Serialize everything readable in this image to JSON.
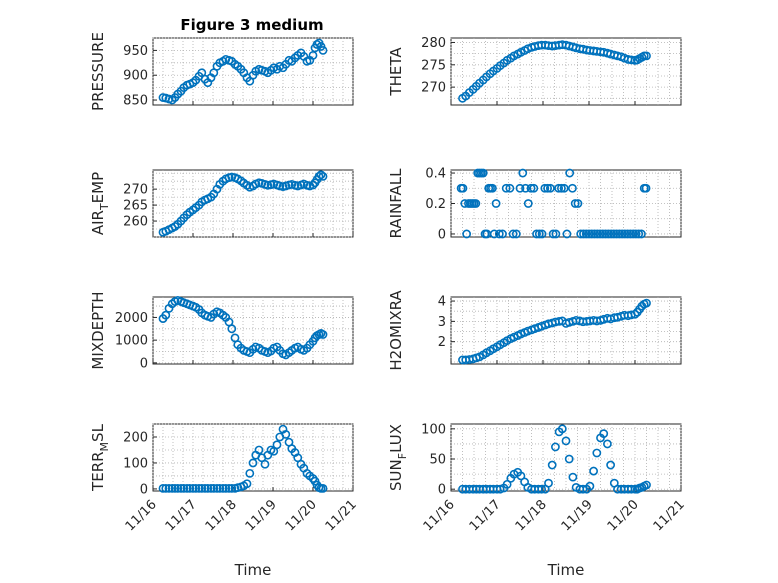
{
  "figure_title": "Figure 3 medium",
  "chart_data": [
    {
      "type": "scatter",
      "id": "pressure",
      "ylabel": "PRESSURE",
      "xlabel": "",
      "xlim": [
        0,
        5
      ],
      "ylim": [
        840,
        975
      ],
      "yticks": [
        850,
        900,
        950
      ],
      "ytick_labels": [
        "850",
        "900",
        "950"
      ],
      "x": [
        0.25,
        0.32,
        0.4,
        0.48,
        0.55,
        0.62,
        0.7,
        0.77,
        0.85,
        0.92,
        1.0,
        1.07,
        1.15,
        1.22,
        1.3,
        1.37,
        1.45,
        1.52,
        1.6,
        1.67,
        1.75,
        1.82,
        1.9,
        1.97,
        2.05,
        2.12,
        2.2,
        2.27,
        2.35,
        2.42,
        2.5,
        2.57,
        2.65,
        2.72,
        2.8,
        2.87,
        2.95,
        3.02,
        3.1,
        3.17,
        3.25,
        3.32,
        3.4,
        3.47,
        3.55,
        3.62,
        3.7,
        3.77,
        3.85,
        3.92,
        4.0,
        4.05,
        4.1,
        4.15,
        4.2,
        4.25
      ],
      "y": [
        855,
        854,
        852,
        850,
        855,
        862,
        868,
        875,
        880,
        882,
        885,
        890,
        898,
        905,
        892,
        885,
        895,
        905,
        918,
        925,
        928,
        932,
        930,
        928,
        922,
        918,
        912,
        905,
        895,
        888,
        900,
        908,
        912,
        910,
        908,
        905,
        910,
        915,
        912,
        918,
        915,
        922,
        930,
        928,
        935,
        940,
        945,
        938,
        928,
        930,
        940,
        955,
        962,
        965,
        958,
        950
      ]
    },
    {
      "type": "scatter",
      "id": "theta",
      "ylabel": "THETA",
      "xlabel": "",
      "xlim": [
        0,
        5
      ],
      "ylim": [
        266,
        281
      ],
      "yticks": [
        270,
        275,
        280
      ],
      "ytick_labels": [
        "270",
        "275",
        "280"
      ],
      "x": [
        0.25,
        0.32,
        0.4,
        0.48,
        0.55,
        0.62,
        0.7,
        0.77,
        0.85,
        0.92,
        1.0,
        1.07,
        1.15,
        1.22,
        1.3,
        1.37,
        1.45,
        1.52,
        1.6,
        1.67,
        1.75,
        1.82,
        1.9,
        1.97,
        2.05,
        2.12,
        2.2,
        2.27,
        2.35,
        2.42,
        2.5,
        2.57,
        2.65,
        2.72,
        2.8,
        2.87,
        2.95,
        3.02,
        3.1,
        3.17,
        3.25,
        3.32,
        3.4,
        3.47,
        3.55,
        3.62,
        3.7,
        3.77,
        3.85,
        3.92,
        4.0,
        4.05,
        4.1,
        4.15,
        4.2,
        4.25
      ],
      "y": [
        267.5,
        268,
        268.8,
        269.5,
        270.2,
        270.9,
        271.6,
        272.3,
        273,
        273.6,
        274.2,
        274.8,
        275.4,
        276,
        276.5,
        277,
        277.4,
        277.8,
        278.2,
        278.6,
        278.9,
        279.1,
        279.3,
        279.4,
        279.4,
        279.3,
        279.2,
        279.3,
        279.4,
        279.5,
        279.4,
        279.2,
        279,
        278.8,
        278.6,
        278.5,
        278.3,
        278.2,
        278.1,
        278,
        277.9,
        277.8,
        277.6,
        277.4,
        277.2,
        277,
        276.8,
        276.5,
        276.2,
        276.1,
        276,
        276.1,
        276.4,
        276.7,
        277,
        277
      ]
    },
    {
      "type": "scatter",
      "id": "air-temp",
      "ylabel": "AIR_TEMP",
      "ylabel_parts": [
        "AIR",
        "T",
        "EMP"
      ],
      "xlabel": "",
      "xlim": [
        0,
        5
      ],
      "ylim": [
        255,
        276
      ],
      "yticks": [
        260,
        265,
        270
      ],
      "ytick_labels": [
        "260",
        "265",
        "270"
      ],
      "x": [
        0.25,
        0.32,
        0.4,
        0.48,
        0.55,
        0.62,
        0.7,
        0.77,
        0.85,
        0.92,
        1.0,
        1.07,
        1.15,
        1.22,
        1.3,
        1.37,
        1.45,
        1.52,
        1.6,
        1.67,
        1.75,
        1.82,
        1.9,
        1.97,
        2.05,
        2.12,
        2.2,
        2.27,
        2.35,
        2.42,
        2.5,
        2.57,
        2.65,
        2.72,
        2.8,
        2.87,
        2.95,
        3.02,
        3.1,
        3.17,
        3.25,
        3.32,
        3.4,
        3.47,
        3.55,
        3.62,
        3.7,
        3.77,
        3.85,
        3.92,
        4.0,
        4.05,
        4.1,
        4.15,
        4.2,
        4.25
      ],
      "y": [
        256.5,
        256.8,
        257.3,
        257.8,
        258.3,
        259,
        260,
        261,
        262,
        262.8,
        263.5,
        264.2,
        265,
        266,
        266.6,
        267,
        267.5,
        268.5,
        270,
        271.5,
        272.5,
        273.2,
        273.6,
        273.8,
        273.6,
        273.2,
        272.6,
        271.9,
        271.2,
        270.6,
        271,
        271.6,
        272,
        271.8,
        271.5,
        271.2,
        271.4,
        271.6,
        271.3,
        271,
        270.8,
        271,
        271.3,
        271.5,
        271.2,
        271,
        271.3,
        271.6,
        271.2,
        271,
        271.3,
        272,
        273,
        274,
        274.5,
        274
      ]
    },
    {
      "type": "scatter",
      "id": "rainfall",
      "ylabel": "RAINFALL",
      "xlabel": "",
      "xlim": [
        0,
        5
      ],
      "ylim": [
        -0.02,
        0.42
      ],
      "yticks": [
        0,
        0.2,
        0.4
      ],
      "ytick_labels": [
        "0",
        "0.2",
        "0.4"
      ],
      "x": [
        0.22,
        0.26,
        0.3,
        0.34,
        0.38,
        0.42,
        0.46,
        0.5,
        0.54,
        0.58,
        0.62,
        0.66,
        0.7,
        0.74,
        0.78,
        0.82,
        0.86,
        0.9,
        0.94,
        0.98,
        1.05,
        1.12,
        1.2,
        1.28,
        1.35,
        1.42,
        1.5,
        1.56,
        1.62,
        1.68,
        1.74,
        1.8,
        1.86,
        1.92,
        1.98,
        2.04,
        2.1,
        2.16,
        2.22,
        2.28,
        2.34,
        2.4,
        2.46,
        2.52,
        2.58,
        2.64,
        2.7,
        2.76,
        2.82,
        2.88,
        2.94,
        3.0,
        3.06,
        3.12,
        3.18,
        3.24,
        3.3,
        3.36,
        3.42,
        3.48,
        3.54,
        3.6,
        3.66,
        3.72,
        3.78,
        3.84,
        3.9,
        3.96,
        4.02,
        4.08,
        4.14,
        4.2,
        4.24
      ],
      "y": [
        0.3,
        0.3,
        0.2,
        0.0,
        0.2,
        0.2,
        0.2,
        0.2,
        0.2,
        0.4,
        0.4,
        0.4,
        0.4,
        0.0,
        0.0,
        0.3,
        0.3,
        0.3,
        0.0,
        0.2,
        0.0,
        0.0,
        0.3,
        0.3,
        0.0,
        0.0,
        0.3,
        0.4,
        0.3,
        0.2,
        0.3,
        0.3,
        0.0,
        0.0,
        0.0,
        0.3,
        0.3,
        0.3,
        0.0,
        0.0,
        0.3,
        0.3,
        0.3,
        0.0,
        0.4,
        0.3,
        0.2,
        0.2,
        0.0,
        0.0,
        0.0,
        0.0,
        0.0,
        0.0,
        0.0,
        0.0,
        0.0,
        0.0,
        0.0,
        0.0,
        0.0,
        0.0,
        0.0,
        0.0,
        0.0,
        0.0,
        0.0,
        0.0,
        0.0,
        0.0,
        0.0,
        0.3,
        0.3
      ]
    },
    {
      "type": "scatter",
      "id": "mixdepth",
      "ylabel": "MIXDEPTH",
      "xlabel": "",
      "xlim": [
        0,
        5
      ],
      "ylim": [
        -50,
        2900
      ],
      "yticks": [
        0,
        1000,
        2000
      ],
      "ytick_labels": [
        "0",
        "1000",
        "2000"
      ],
      "x": [
        0.25,
        0.32,
        0.4,
        0.48,
        0.55,
        0.62,
        0.7,
        0.77,
        0.85,
        0.92,
        1.0,
        1.07,
        1.15,
        1.22,
        1.3,
        1.37,
        1.45,
        1.52,
        1.6,
        1.67,
        1.75,
        1.82,
        1.9,
        1.97,
        2.05,
        2.12,
        2.2,
        2.27,
        2.35,
        2.42,
        2.5,
        2.57,
        2.65,
        2.72,
        2.8,
        2.87,
        2.95,
        3.02,
        3.1,
        3.17,
        3.25,
        3.32,
        3.4,
        3.47,
        3.55,
        3.62,
        3.7,
        3.77,
        3.85,
        3.92,
        4.0,
        4.05,
        4.1,
        4.15,
        4.2,
        4.25
      ],
      "y": [
        1950,
        2100,
        2400,
        2600,
        2700,
        2750,
        2700,
        2650,
        2600,
        2550,
        2500,
        2450,
        2350,
        2200,
        2100,
        2050,
        2000,
        2150,
        2250,
        2200,
        2100,
        2000,
        1800,
        1500,
        1100,
        800,
        650,
        550,
        500,
        450,
        600,
        700,
        650,
        550,
        500,
        450,
        520,
        650,
        700,
        550,
        400,
        350,
        450,
        550,
        650,
        700,
        600,
        550,
        650,
        800,
        950,
        1100,
        1200,
        1250,
        1300,
        1250
      ]
    },
    {
      "type": "scatter",
      "id": "h2omixra",
      "ylabel": "H2OMIXRA",
      "xlabel": "",
      "xlim": [
        0,
        5
      ],
      "ylim": [
        0.9,
        4.2
      ],
      "yticks": [
        2,
        3,
        4
      ],
      "ytick_labels": [
        "2",
        "3",
        "4"
      ],
      "x": [
        0.25,
        0.32,
        0.4,
        0.48,
        0.55,
        0.62,
        0.7,
        0.77,
        0.85,
        0.92,
        1.0,
        1.07,
        1.15,
        1.22,
        1.3,
        1.37,
        1.45,
        1.52,
        1.6,
        1.67,
        1.75,
        1.82,
        1.9,
        1.97,
        2.05,
        2.12,
        2.2,
        2.27,
        2.35,
        2.42,
        2.5,
        2.57,
        2.65,
        2.72,
        2.8,
        2.87,
        2.95,
        3.02,
        3.1,
        3.17,
        3.25,
        3.32,
        3.4,
        3.47,
        3.55,
        3.62,
        3.7,
        3.77,
        3.85,
        3.92,
        4.0,
        4.05,
        4.1,
        4.15,
        4.2,
        4.25
      ],
      "y": [
        1.1,
        1.1,
        1.12,
        1.15,
        1.2,
        1.25,
        1.35,
        1.45,
        1.55,
        1.65,
        1.75,
        1.85,
        1.95,
        2.05,
        2.15,
        2.22,
        2.3,
        2.38,
        2.45,
        2.52,
        2.58,
        2.64,
        2.7,
        2.76,
        2.82,
        2.88,
        2.92,
        2.97,
        3.0,
        3.02,
        2.9,
        2.95,
        3.0,
        3.05,
        3.02,
        2.98,
        3.0,
        3.02,
        3.05,
        3.02,
        3.05,
        3.1,
        3.15,
        3.12,
        3.18,
        3.2,
        3.25,
        3.3,
        3.28,
        3.32,
        3.35,
        3.45,
        3.6,
        3.75,
        3.85,
        3.9
      ]
    },
    {
      "type": "scatter",
      "id": "terr-msl",
      "ylabel": "TERR_MSL",
      "ylabel_parts": [
        "TERR",
        "M",
        "SL"
      ],
      "xlabel": "Time",
      "xlim": [
        0,
        5
      ],
      "ylim": [
        -8,
        250
      ],
      "yticks": [
        0,
        100,
        200
      ],
      "ytick_labels": [
        "0",
        "100",
        "200"
      ],
      "xticks": [
        0,
        1,
        2,
        3,
        4,
        5
      ],
      "xtick_labels": [
        "11/16",
        "11/17",
        "11/18",
        "11/19",
        "11/20",
        "11/21"
      ],
      "x": [
        0.25,
        0.32,
        0.4,
        0.48,
        0.55,
        0.62,
        0.7,
        0.77,
        0.85,
        0.92,
        1.0,
        1.07,
        1.15,
        1.22,
        1.3,
        1.37,
        1.45,
        1.52,
        1.6,
        1.67,
        1.75,
        1.82,
        1.9,
        1.97,
        2.05,
        2.12,
        2.2,
        2.27,
        2.35,
        2.42,
        2.5,
        2.57,
        2.65,
        2.72,
        2.8,
        2.87,
        2.95,
        3.02,
        3.1,
        3.17,
        3.25,
        3.32,
        3.4,
        3.47,
        3.55,
        3.62,
        3.7,
        3.77,
        3.85,
        3.92,
        4.0,
        4.05,
        4.1,
        4.15,
        4.2,
        4.25
      ],
      "y": [
        2,
        2,
        2,
        2,
        2,
        2,
        2,
        2,
        2,
        2,
        2,
        2,
        2,
        2,
        2,
        2,
        2,
        2,
        2,
        2,
        2,
        2,
        2,
        2,
        2,
        5,
        8,
        12,
        20,
        60,
        100,
        130,
        150,
        120,
        95,
        130,
        150,
        145,
        170,
        200,
        230,
        210,
        180,
        155,
        140,
        120,
        95,
        80,
        60,
        50,
        40,
        30,
        15,
        5,
        2,
        2
      ]
    },
    {
      "type": "scatter",
      "id": "sun-flux",
      "ylabel": "SUN_FLUX",
      "ylabel_parts": [
        "SUN",
        "F",
        "LUX"
      ],
      "xlabel": "Time",
      "xlim": [
        0,
        5
      ],
      "ylim": [
        -3,
        108
      ],
      "yticks": [
        0,
        50,
        100
      ],
      "ytick_labels": [
        "0",
        "50",
        "100"
      ],
      "xticks": [
        0,
        1,
        2,
        3,
        4,
        5
      ],
      "xtick_labels": [
        "11/16",
        "11/17",
        "11/18",
        "11/19",
        "11/20",
        "11/21"
      ],
      "x": [
        0.25,
        0.32,
        0.4,
        0.48,
        0.55,
        0.62,
        0.7,
        0.77,
        0.85,
        0.92,
        1.0,
        1.07,
        1.15,
        1.22,
        1.3,
        1.37,
        1.45,
        1.52,
        1.6,
        1.67,
        1.75,
        1.82,
        1.9,
        1.97,
        2.05,
        2.12,
        2.2,
        2.27,
        2.35,
        2.42,
        2.5,
        2.57,
        2.65,
        2.72,
        2.8,
        2.87,
        2.95,
        3.02,
        3.1,
        3.17,
        3.25,
        3.32,
        3.4,
        3.47,
        3.55,
        3.62,
        3.7,
        3.77,
        3.85,
        3.92,
        4.0,
        4.05,
        4.1,
        4.15,
        4.2,
        4.25
      ],
      "y": [
        0,
        0,
        0,
        0,
        0,
        0,
        0,
        0,
        0,
        0,
        0,
        0,
        2,
        8,
        18,
        25,
        28,
        22,
        12,
        3,
        0,
        0,
        0,
        0,
        0,
        10,
        40,
        70,
        95,
        100,
        80,
        50,
        20,
        3,
        0,
        0,
        0,
        5,
        30,
        60,
        85,
        92,
        75,
        40,
        10,
        0,
        0,
        0,
        0,
        0,
        0,
        0,
        2,
        3,
        5,
        7
      ]
    }
  ]
}
